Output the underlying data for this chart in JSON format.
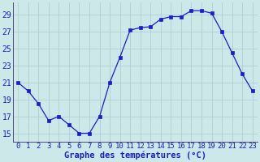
{
  "hours": [
    0,
    1,
    2,
    3,
    4,
    5,
    6,
    7,
    8,
    9,
    10,
    11,
    12,
    13,
    14,
    15,
    16,
    17,
    18,
    19,
    20,
    21,
    22,
    23
  ],
  "temperatures": [
    21,
    20,
    18.5,
    16.5,
    17,
    16,
    15,
    15,
    17,
    21,
    24,
    27.2,
    27.5,
    27.6,
    28.5,
    28.8,
    28.8,
    29.5,
    29.5,
    29.2,
    27,
    24.5,
    22,
    20
  ],
  "line_color": "#1c1cd4",
  "marker_color": "#1c1cd4",
  "bg_color": "#cce8e8",
  "grid_color": "#aacccc",
  "xlabel": "Graphe des températures (°C)",
  "xlabel_color": "#1c1cd4",
  "ylabel_ticks": [
    15,
    17,
    19,
    21,
    23,
    25,
    27,
    29
  ],
  "ylim": [
    14.0,
    30.5
  ],
  "xlim": [
    -0.5,
    23.5
  ],
  "tick_fontsize": 6.5,
  "label_fontsize": 7.5
}
